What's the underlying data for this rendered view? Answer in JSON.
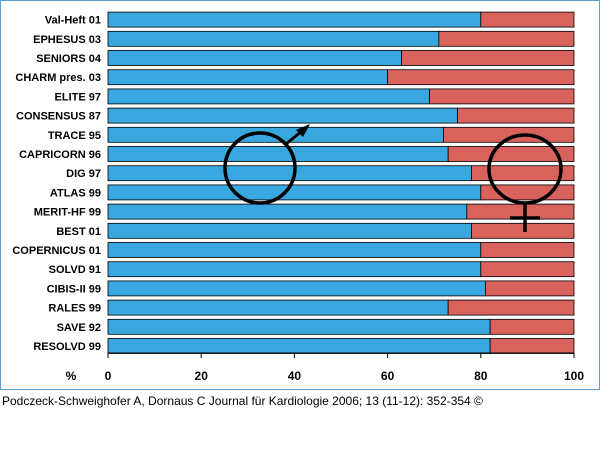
{
  "chart_data": {
    "type": "bar",
    "orientation": "horizontal",
    "stacked": true,
    "categories": [
      "Val-Heft 01",
      "EPHESUS 03",
      "SENIORS 04",
      "CHARM pres. 03",
      "ELITE 97",
      "CONSENSUS 87",
      "TRACE 95",
      "CAPRICORN 96",
      "DIG 97",
      "ATLAS 99",
      "MERIT-HF 99",
      "BEST 01",
      "COPERNICUS 01",
      "SOLVD 91",
      "CIBIS-II 99",
      "RALES 99",
      "SAVE 92",
      "RESOLVD 99"
    ],
    "series": [
      {
        "symbol": "male",
        "color": "#3aa8e0",
        "values": [
          80,
          71,
          63,
          60,
          69,
          75,
          72,
          73,
          78,
          80,
          77,
          78,
          80,
          80,
          81,
          73,
          82,
          82
        ]
      },
      {
        "symbol": "female",
        "color": "#d9625c",
        "values": [
          20,
          29,
          37,
          40,
          31,
          25,
          28,
          27,
          22,
          20,
          23,
          22,
          20,
          20,
          19,
          27,
          18,
          18
        ]
      }
    ],
    "xlim": [
      0,
      100
    ],
    "x_ticks": [
      "0",
      "20",
      "40",
      "60",
      "80",
      "100"
    ],
    "x_unit_label": "%",
    "grid": false
  },
  "credit": "Podczeck-Schweighofer A, Dornaus C Journal für Kardiologie 2006; 13 (11-12): 352-354 ©"
}
